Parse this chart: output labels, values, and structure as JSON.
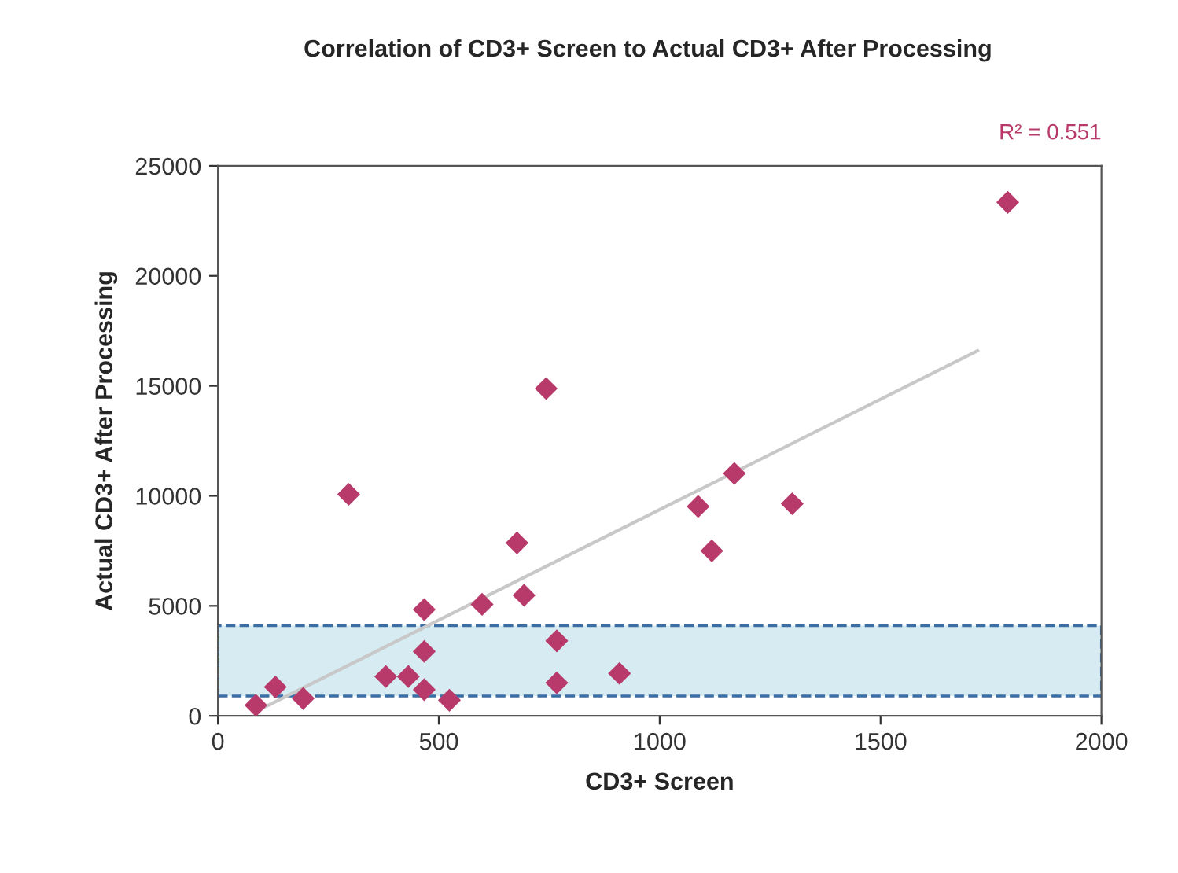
{
  "chart_data": {
    "type": "scatter",
    "title": "Correlation of CD3+ Screen to Actual CD3+ After Processing",
    "xlabel": "CD3+ Screen",
    "ylabel": "Actual CD3+ After Processing",
    "annotations": [
      "R² = 0.551"
    ],
    "x": [
      86,
      130,
      193,
      296,
      380,
      431,
      467,
      467,
      467,
      524,
      598,
      677,
      693,
      743,
      767,
      767,
      909,
      1087,
      1118,
      1169,
      1300,
      1788
    ],
    "series": [
      {
        "color": "#b83a6a",
        "marker": "diamond",
        "values": [
          480,
          1310,
          790,
          10070,
          1790,
          1790,
          1190,
          2930,
          4830,
          710,
          5070,
          7860,
          5480,
          14880,
          3410,
          1500,
          1930,
          9520,
          7500,
          11020,
          9640,
          23340
        ]
      },
      {
        "type": "line",
        "color": "#c8c8c8",
        "x": [
          86,
          1720
        ],
        "values": [
          200,
          16600
        ]
      }
    ],
    "bands": [
      {
        "axis": "y",
        "from": 900,
        "to": 4100,
        "color": "#d6ecf2"
      }
    ],
    "xlim": [
      0,
      2000
    ],
    "ylim": [
      0,
      25000
    ],
    "xticks": [
      0,
      500,
      1000,
      1500,
      2000
    ],
    "yticks": [
      0,
      5000,
      10000,
      15000,
      20000,
      25000
    ],
    "grid": false,
    "legend": false
  }
}
